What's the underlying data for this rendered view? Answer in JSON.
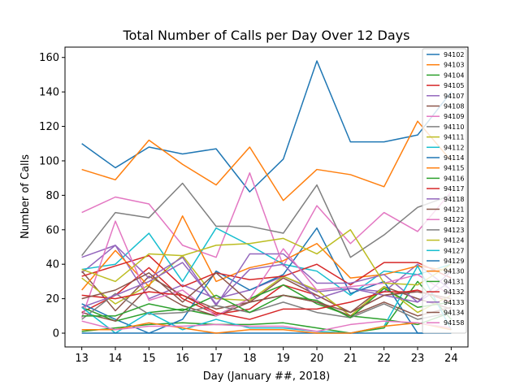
{
  "chart_data": {
    "type": "line",
    "title": "Total Number of Calls per Day Over 12 Days",
    "xlabel": "Day (January ##, 2018)",
    "ylabel": "Number of Calls",
    "x": [
      13,
      14,
      15,
      16,
      17,
      18,
      19,
      20,
      21,
      22,
      23,
      24
    ],
    "xlim": [
      12.5,
      24.5
    ],
    "ylim": [
      -8,
      166
    ],
    "yticks": [
      0,
      20,
      40,
      60,
      80,
      100,
      120,
      140,
      160
    ],
    "grid": false,
    "legend": "right",
    "series": [
      {
        "name": "94102",
        "color": "#1f77b4",
        "values": [
          110,
          96,
          108,
          104,
          107,
          82,
          101,
          158,
          111,
          111,
          115,
          140
        ]
      },
      {
        "name": "94103",
        "color": "#ff7f0e",
        "values": [
          95,
          89,
          112,
          98,
          86,
          108,
          77,
          95,
          92,
          85,
          123,
          100
        ]
      },
      {
        "name": "94104",
        "color": "#2ca02c",
        "values": [
          1,
          3,
          5,
          6,
          5,
          5,
          6,
          3,
          0,
          3,
          30,
          8
        ]
      },
      {
        "name": "94105",
        "color": "#d62728",
        "values": [
          12,
          22,
          38,
          20,
          11,
          14,
          28,
          22,
          12,
          22,
          25,
          18
        ]
      },
      {
        "name": "94107",
        "color": "#9467bd",
        "values": [
          35,
          51,
          20,
          28,
          20,
          25,
          33,
          24,
          26,
          24,
          40,
          25
        ]
      },
      {
        "name": "94108",
        "color": "#8c564b",
        "values": [
          36,
          13,
          33,
          22,
          14,
          18,
          32,
          22,
          12,
          27,
          20,
          14
        ]
      },
      {
        "name": "94109",
        "color": "#e377c2",
        "values": [
          70,
          79,
          75,
          51,
          44,
          93,
          39,
          74,
          52,
          70,
          59,
          82
        ]
      },
      {
        "name": "94110",
        "color": "#7f7f7f",
        "values": [
          45,
          70,
          67,
          87,
          62,
          62,
          58,
          86,
          44,
          57,
          73,
          80
        ]
      },
      {
        "name": "94111",
        "color": "#bcbd22",
        "values": [
          32,
          17,
          28,
          45,
          20,
          19,
          33,
          25,
          10,
          27,
          12,
          22
        ]
      },
      {
        "name": "94112",
        "color": "#17becf",
        "values": [
          37,
          40,
          58,
          30,
          61,
          51,
          40,
          36,
          22,
          36,
          34,
          40
        ]
      },
      {
        "name": "94114",
        "color": "#1f77b4",
        "values": [
          17,
          8,
          0,
          8,
          36,
          25,
          34,
          61,
          23,
          30,
          0,
          0
        ]
      },
      {
        "name": "94115",
        "color": "#ff7f0e",
        "values": [
          25,
          48,
          27,
          68,
          30,
          38,
          42,
          52,
          32,
          34,
          39,
          36
        ]
      },
      {
        "name": "94116",
        "color": "#2ca02c",
        "values": [
          15,
          7,
          12,
          14,
          10,
          20,
          28,
          17,
          10,
          8,
          5,
          12
        ]
      },
      {
        "name": "94117",
        "color": "#d62728",
        "values": [
          33,
          39,
          45,
          27,
          35,
          31,
          33,
          40,
          28,
          41,
          41,
          32
        ]
      },
      {
        "name": "94118",
        "color": "#9467bd",
        "values": [
          44,
          51,
          32,
          44,
          16,
          46,
          46,
          29,
          29,
          34,
          18,
          30
        ]
      },
      {
        "name": "94121",
        "color": "#8c564b",
        "values": [
          12,
          7,
          27,
          16,
          10,
          18,
          22,
          18,
          10,
          18,
          10,
          15
        ]
      },
      {
        "name": "94122",
        "color": "#e377c2",
        "values": [
          9,
          65,
          19,
          25,
          10,
          20,
          49,
          25,
          27,
          29,
          34,
          22
        ]
      },
      {
        "name": "94123",
        "color": "#7f7f7f",
        "values": [
          8,
          23,
          11,
          12,
          16,
          12,
          18,
          12,
          9,
          17,
          8,
          12
        ]
      },
      {
        "name": "94124",
        "color": "#bcbd22",
        "values": [
          37,
          30,
          46,
          45,
          51,
          52,
          55,
          46,
          60,
          29,
          28,
          40
        ]
      },
      {
        "name": "94127",
        "color": "#17becf",
        "values": [
          15,
          0,
          12,
          2,
          8,
          3,
          3,
          1,
          0,
          4,
          39,
          2
        ]
      },
      {
        "name": "94129",
        "color": "#1f77b4",
        "values": [
          0,
          0,
          0,
          0,
          0,
          0,
          0,
          0,
          0,
          0,
          0,
          0
        ]
      },
      {
        "name": "94130",
        "color": "#ff7f0e",
        "values": [
          2,
          2,
          6,
          3,
          0,
          2,
          2,
          0,
          0,
          4,
          6,
          2
        ]
      },
      {
        "name": "94131",
        "color": "#2ca02c",
        "values": [
          10,
          10,
          17,
          13,
          22,
          12,
          22,
          19,
          9,
          26,
          15,
          18
        ]
      },
      {
        "name": "94132",
        "color": "#d62728",
        "values": [
          22,
          20,
          24,
          22,
          12,
          8,
          14,
          14,
          18,
          24,
          24,
          20
        ]
      },
      {
        "name": "94133",
        "color": "#9467bd",
        "values": [
          15,
          22,
          30,
          41,
          17,
          37,
          40,
          20,
          26,
          22,
          18,
          36
        ]
      },
      {
        "name": "94134",
        "color": "#8c564b",
        "values": [
          20,
          25,
          35,
          18,
          35,
          18,
          22,
          18,
          12,
          22,
          24,
          20
        ]
      },
      {
        "name": "94158",
        "color": "#e377c2",
        "values": [
          7,
          2,
          4,
          4,
          5,
          4,
          4,
          1,
          5,
          7,
          6,
          3
        ]
      }
    ]
  }
}
